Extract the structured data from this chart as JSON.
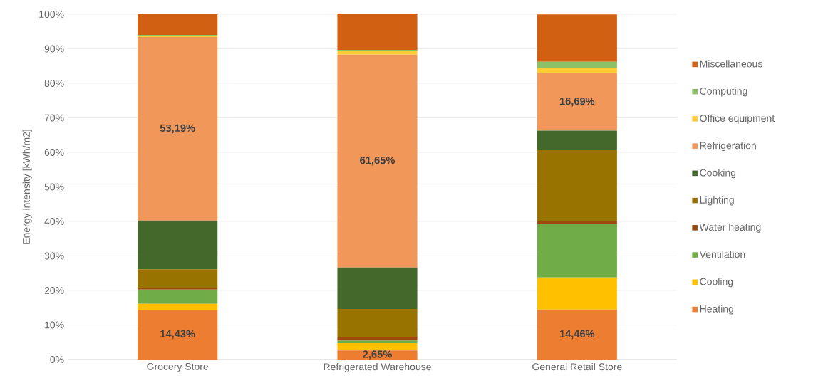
{
  "chart_data": {
    "type": "bar",
    "stacked": true,
    "ylabel": "Energy intensity [kWh/m2]",
    "categories": [
      "Grocery Store",
      "Refrigerated Warehouse",
      "General Retail Store"
    ],
    "series": [
      {
        "name": "Heating",
        "color": "#ed7d31",
        "values": [
          14.43,
          2.65,
          14.46
        ],
        "value_labels": [
          "14,43%",
          "2,65%",
          "14,46%"
        ]
      },
      {
        "name": "Cooling",
        "color": "#ffc000",
        "values": [
          1.7,
          2.1,
          9.3
        ]
      },
      {
        "name": "Ventilation",
        "color": "#70ad47",
        "values": [
          4.1,
          0.7,
          15.5
        ]
      },
      {
        "name": "Water heating",
        "color": "#9e480e",
        "values": [
          0.5,
          1.0,
          0.8
        ]
      },
      {
        "name": "Lighting",
        "color": "#997300",
        "values": [
          5.4,
          8.2,
          20.6
        ]
      },
      {
        "name": "Cooking",
        "color": "#43682b",
        "values": [
          14.1,
          12.0,
          5.6
        ]
      },
      {
        "name": "Refrigeration",
        "color": "#f1975a",
        "values": [
          53.19,
          61.65,
          16.69
        ],
        "value_labels": [
          "53,19%",
          "61,65%",
          "16,69%"
        ]
      },
      {
        "name": "Office equipment",
        "color": "#ffcd33",
        "values": [
          0.4,
          1.0,
          1.4
        ]
      },
      {
        "name": "Computing",
        "color": "#8cc168",
        "values": [
          0.2,
          0.4,
          1.9
        ]
      },
      {
        "name": "Miscellaneous",
        "color": "#d26012",
        "values": [
          6.0,
          10.3,
          13.7
        ]
      }
    ],
    "ylim": [
      0,
      100
    ],
    "yticks": [
      {
        "value": 0,
        "label": "0%"
      },
      {
        "value": 10,
        "label": "10%"
      },
      {
        "value": 20,
        "label": "20%"
      },
      {
        "value": 30,
        "label": "30%"
      },
      {
        "value": 40,
        "label": "40%"
      },
      {
        "value": 50,
        "label": "50%"
      },
      {
        "value": 60,
        "label": "60%"
      },
      {
        "value": 70,
        "label": "70%"
      },
      {
        "value": 80,
        "label": "80%"
      },
      {
        "value": 90,
        "label": "90%"
      },
      {
        "value": 100,
        "label": "100%"
      }
    ],
    "grid": "y",
    "legend": "right"
  }
}
